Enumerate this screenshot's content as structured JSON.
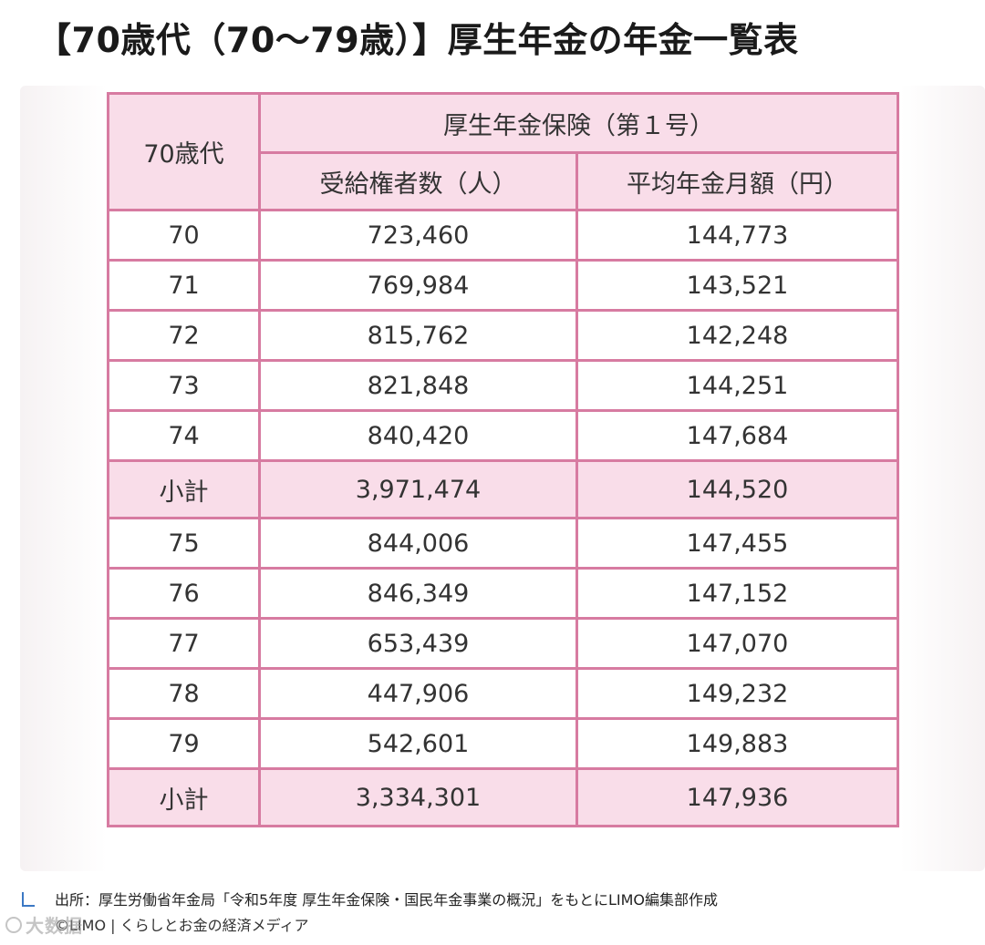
{
  "title": "【70歳代（70〜79歳）】厚生年金の年金一覧表",
  "table": {
    "corner_header": "70歳代",
    "group_header": "厚生年金保険（第１号）",
    "col_recipients": "受給権者数（人）",
    "col_average": "平均年金月額（円）",
    "rows": [
      {
        "age": "70",
        "recipients": "723,460",
        "average": "144,773"
      },
      {
        "age": "71",
        "recipients": "769,984",
        "average": "143,521"
      },
      {
        "age": "72",
        "recipients": "815,762",
        "average": "142,248"
      },
      {
        "age": "73",
        "recipients": "821,848",
        "average": "144,251"
      },
      {
        "age": "74",
        "recipients": "840,420",
        "average": "147,684"
      },
      {
        "age": "小計",
        "recipients": "3,971,474",
        "average": "144,520",
        "subtotal": true
      },
      {
        "age": "75",
        "recipients": "844,006",
        "average": "147,455"
      },
      {
        "age": "76",
        "recipients": "846,349",
        "average": "147,152"
      },
      {
        "age": "77",
        "recipients": "653,439",
        "average": "147,070"
      },
      {
        "age": "78",
        "recipients": "447,906",
        "average": "149,232"
      },
      {
        "age": "79",
        "recipients": "542,601",
        "average": "149,883"
      },
      {
        "age": "小計",
        "recipients": "3,334,301",
        "average": "147,936",
        "subtotal": true
      }
    ]
  },
  "source": "出所：厚生労働省年金局「令和5年度 厚生年金保険・国民年金事業の概況」をもとにLIMO編集部作成",
  "copyright": "©LIMO | くらしとお金の経済メディア",
  "watermark": "大数据",
  "colors": {
    "table_border": "#d77ba1",
    "header_fill": "#f9dde9",
    "source_icon": "#3b78c4"
  }
}
